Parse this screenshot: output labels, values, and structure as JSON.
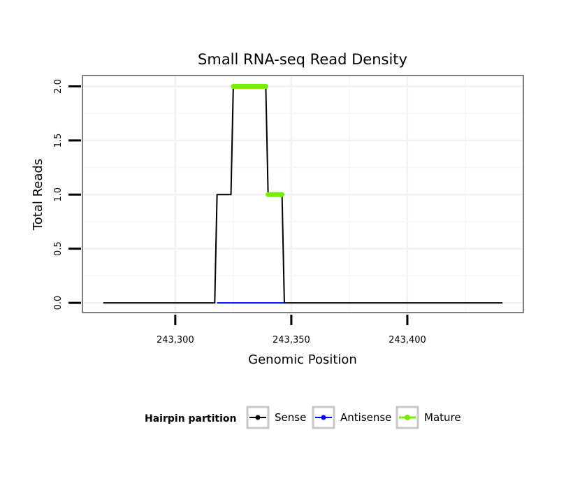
{
  "chart_data": {
    "type": "line",
    "title": "Small RNA-seq Read Density",
    "xlabel": "Genomic Position",
    "ylabel": "Total Reads",
    "xlim": [
      243260,
      243450
    ],
    "ylim": [
      -0.09,
      2.1
    ],
    "x_ticks": [
      243300,
      243350,
      243400
    ],
    "x_tick_labels": [
      "243,300",
      "243,350",
      "243,400"
    ],
    "y_ticks": [
      0.0,
      0.5,
      1.0,
      1.5,
      2.0
    ],
    "y_tick_labels": [
      "0.0",
      "0.5",
      "1.0",
      "1.5",
      "2.0"
    ],
    "grid": true,
    "legend": {
      "title": "Hairpin partition",
      "position": "bottom",
      "entries": [
        "Sense",
        "Antisense",
        "Mature"
      ]
    },
    "series": [
      {
        "name": "Sense",
        "color": "#000000",
        "kind": "line",
        "x": [
          243269,
          243317,
          243318,
          243324,
          243325,
          243339,
          243340,
          243346,
          243347,
          243441
        ],
        "y": [
          0,
          0,
          1,
          1,
          2,
          2,
          1,
          1,
          0,
          0
        ]
      },
      {
        "name": "Antisense",
        "color": "#0000ff",
        "kind": "line",
        "x": [
          243318,
          243347
        ],
        "y": [
          0,
          0
        ]
      },
      {
        "name": "Mature",
        "color": "#76ee00",
        "kind": "segments",
        "segments": [
          {
            "x": [
              243325,
              243339
            ],
            "y": 2
          },
          {
            "x": [
              243340,
              243346
            ],
            "y": 1
          }
        ]
      }
    ]
  }
}
